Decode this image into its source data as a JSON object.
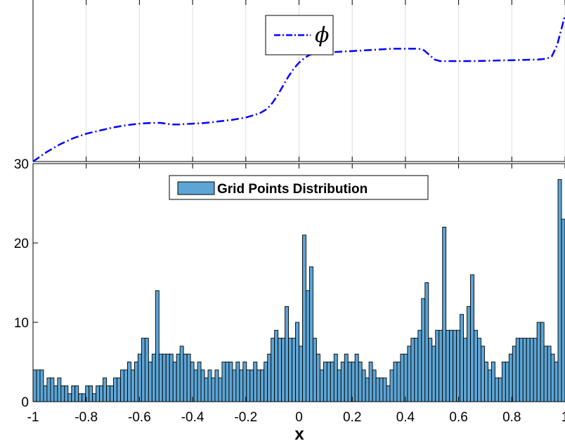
{
  "chart_data": [
    {
      "type": "line",
      "title": "",
      "xlabel": "",
      "ylabel": "",
      "xlim": [
        -1,
        1
      ],
      "grid": true,
      "legend_location": "top-center",
      "series": [
        {
          "name": "ϕ",
          "color": "#0000ff",
          "line_style": "dash-dot",
          "x": [
            -1.0,
            -0.95,
            -0.9,
            -0.85,
            -0.8,
            -0.75,
            -0.7,
            -0.65,
            -0.6,
            -0.55,
            -0.52,
            -0.5,
            -0.48,
            -0.45,
            -0.4,
            -0.35,
            -0.3,
            -0.25,
            -0.2,
            -0.15,
            -0.12,
            -0.1,
            -0.08,
            -0.06,
            -0.04,
            -0.02,
            0.0,
            0.02,
            0.04,
            0.06,
            0.1,
            0.15,
            0.2,
            0.25,
            0.3,
            0.35,
            0.4,
            0.45,
            0.47,
            0.49,
            0.51,
            0.53,
            0.55,
            0.6,
            0.65,
            0.7,
            0.75,
            0.8,
            0.85,
            0.9,
            0.93,
            0.95,
            0.97,
            0.99,
            1.0
          ],
          "y": [
            0.0,
            0.06,
            0.11,
            0.15,
            0.18,
            0.2,
            0.22,
            0.235,
            0.245,
            0.25,
            0.25,
            0.245,
            0.24,
            0.24,
            0.245,
            0.25,
            0.26,
            0.27,
            0.285,
            0.31,
            0.34,
            0.38,
            0.43,
            0.49,
            0.55,
            0.6,
            0.64,
            0.67,
            0.69,
            0.7,
            0.705,
            0.71,
            0.715,
            0.72,
            0.725,
            0.73,
            0.73,
            0.73,
            0.72,
            0.69,
            0.66,
            0.65,
            0.65,
            0.65,
            0.65,
            0.652,
            0.654,
            0.656,
            0.658,
            0.66,
            0.665,
            0.68,
            0.75,
            0.88,
            0.95
          ]
        }
      ]
    },
    {
      "type": "bar",
      "title": "",
      "xlabel": "x",
      "ylabel": "",
      "xlim": [
        -1,
        1
      ],
      "ylim": [
        0,
        30
      ],
      "xticks": [
        "-1",
        "-0.8",
        "-0.6",
        "-0.4",
        "-0.2",
        "0",
        "0.2",
        "0.4",
        "0.6",
        "0.8",
        "1"
      ],
      "yticks": [
        "0",
        "10",
        "20",
        "30"
      ],
      "legend_location": "top-center",
      "series": [
        {
          "name": "Grid Points Distribution",
          "color": "#5da5d5",
          "bin_start": -1,
          "bin_width": 0.01333,
          "values": [
            4,
            4,
            4,
            2,
            3,
            3,
            2,
            3,
            2,
            2,
            1,
            2,
            2,
            1,
            1,
            2,
            2,
            1,
            2,
            2,
            3,
            2,
            2,
            3,
            3,
            4,
            4,
            5,
            4,
            5,
            6,
            8,
            8,
            5,
            6,
            14,
            6,
            6,
            6,
            6,
            5,
            6,
            7,
            6,
            6,
            5,
            4,
            5,
            4,
            3,
            4,
            3,
            4,
            3,
            5,
            5,
            5,
            4,
            5,
            4,
            5,
            4,
            4,
            5,
            4,
            4,
            5,
            6,
            8,
            9,
            8,
            8,
            12,
            8,
            8,
            10,
            7,
            21,
            14,
            17,
            8,
            6,
            4,
            5,
            5,
            5,
            6,
            4,
            5,
            6,
            5,
            5,
            6,
            5,
            4,
            3,
            5,
            4,
            3,
            3,
            3,
            2,
            4,
            5,
            5,
            6,
            6,
            7,
            8,
            8,
            9,
            13,
            15,
            8,
            7,
            9,
            9,
            22,
            9,
            9,
            9,
            9,
            11,
            8,
            12,
            16,
            9,
            8,
            7,
            5,
            4,
            5,
            3,
            3,
            5,
            5,
            6,
            7,
            8,
            8,
            8,
            8,
            8,
            8,
            10,
            10,
            7,
            7,
            6,
            5,
            28,
            23
          ]
        }
      ]
    }
  ]
}
